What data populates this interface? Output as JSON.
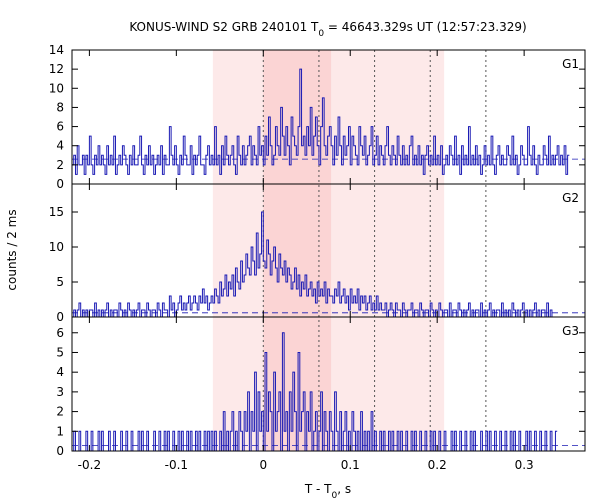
{
  "title_parts": {
    "prefix": "KONUS-WIND S2 GRB 240101 T",
    "sub": "0",
    "suffix": " = 46643.329s UT (12:57:23.329)"
  },
  "xlabel_parts": {
    "prefix": "T - T",
    "sub": "0",
    "suffix": ", s"
  },
  "ylabel": "counts / 2 ms",
  "colors": {
    "series": "#1a1ab4",
    "region_outer": "#fde9e9",
    "region_inner": "#fbd4d4",
    "axis": "#000000",
    "dash_line": "#555555"
  },
  "chart_data": {
    "type": "line",
    "step": true,
    "bin_width_s": 0.002,
    "xlim": [
      -0.22,
      0.37
    ],
    "x_ticks": [
      -0.2,
      -0.1,
      0,
      0.1,
      0.2,
      0.3
    ],
    "x_tick_labels": [
      "-0.2",
      "-0.1",
      "0",
      "0.1",
      "0.2",
      "0.3"
    ],
    "shaded_intervals": [
      {
        "level": "outer",
        "x": [
          -0.058,
          0.208
        ]
      },
      {
        "level": "inner",
        "x": [
          0.0,
          0.078
        ]
      }
    ],
    "vertical_dotted_lines_x": [
      0.0,
      0.064,
      0.128,
      0.192,
      0.256
    ],
    "panels": [
      {
        "label": "G1",
        "ylim": [
          0,
          14
        ],
        "y_ticks": [
          0,
          2,
          4,
          6,
          8,
          10,
          12,
          14
        ],
        "background_level": 2.6,
        "sparse": false,
        "peak_at": 0.03,
        "peak_value": 12,
        "peak_width": 0.05,
        "noise_amp": 1.8,
        "values": [
          2,
          3,
          1,
          4,
          2,
          2,
          3,
          1,
          3,
          2,
          5,
          2,
          1,
          3,
          2,
          4,
          2,
          3,
          2,
          1,
          4,
          2,
          3,
          2,
          5,
          1,
          2,
          3,
          2,
          4,
          3,
          2,
          1,
          3,
          2,
          4,
          2,
          2,
          3,
          5,
          2,
          1,
          3,
          2,
          4,
          2,
          3,
          1,
          2,
          3,
          2,
          4,
          1,
          3,
          2,
          2,
          6,
          3,
          2,
          4,
          2,
          1,
          3,
          2,
          5,
          3,
          2,
          2,
          4,
          1,
          3,
          2,
          3,
          5,
          2,
          2,
          1,
          3,
          4,
          2,
          3,
          2,
          6,
          2,
          3,
          1,
          4,
          2,
          5,
          3,
          2,
          3,
          4,
          2,
          1,
          5,
          3,
          2,
          4,
          2,
          3,
          4,
          5,
          2,
          4,
          3,
          2,
          6,
          3,
          4,
          2,
          5,
          3,
          7,
          4,
          2,
          3,
          6,
          4,
          3,
          8,
          5,
          3,
          6,
          4,
          2,
          7,
          5,
          4,
          3,
          6,
          12,
          4,
          5,
          3,
          6,
          4,
          8,
          3,
          5,
          7,
          4,
          2,
          6,
          9,
          4,
          3,
          5,
          6,
          4,
          2,
          5,
          3,
          7,
          4,
          2,
          5,
          3,
          4,
          6,
          2,
          5,
          4,
          3,
          2,
          6,
          4,
          3,
          5,
          2,
          3,
          4,
          6,
          2,
          3,
          5,
          2,
          4,
          3,
          2,
          4,
          6,
          3,
          2,
          4,
          3,
          2,
          5,
          3,
          2,
          4,
          2,
          3,
          2,
          4,
          5,
          2,
          3,
          2,
          4,
          2,
          3,
          1,
          3,
          4,
          2,
          3,
          2,
          5,
          2,
          3,
          2,
          4,
          1,
          2,
          3,
          2,
          4,
          3,
          2,
          5,
          2,
          3,
          1,
          4,
          2,
          3,
          2,
          6,
          2,
          3,
          2,
          4,
          2,
          3,
          1,
          2,
          4,
          2,
          3,
          2,
          5,
          2,
          1,
          3,
          4,
          2,
          3,
          2,
          2,
          4,
          3,
          2,
          5,
          2,
          3,
          1,
          2,
          4,
          3,
          2,
          2,
          6,
          3,
          2,
          4,
          2,
          1,
          3,
          2,
          2,
          4,
          3,
          2,
          5,
          2,
          3,
          2,
          3,
          4,
          2,
          3,
          2,
          4,
          1,
          3
        ]
      },
      {
        "label": "G2",
        "ylim": [
          0,
          19
        ],
        "y_ticks": [
          0,
          5,
          10,
          15
        ],
        "background_level": 0.6,
        "sparse": false,
        "peak_at": 0.02,
        "peak_value": 15.5,
        "peak_width": 0.03,
        "noise_amp": 1.2,
        "values": [
          0,
          1,
          0,
          1,
          2,
          0,
          1,
          0,
          1,
          0,
          1,
          1,
          0,
          2,
          0,
          1,
          0,
          1,
          0,
          1,
          2,
          0,
          1,
          0,
          1,
          1,
          0,
          2,
          1,
          0,
          1,
          0,
          2,
          1,
          0,
          1,
          0,
          1,
          2,
          0,
          1,
          1,
          0,
          2,
          1,
          0,
          1,
          1,
          0,
          2,
          1,
          0,
          2,
          1,
          1,
          0,
          3,
          1,
          2,
          0,
          1,
          2,
          3,
          1,
          2,
          1,
          2,
          3,
          1,
          2,
          3,
          2,
          1,
          3,
          2,
          4,
          2,
          3,
          1,
          2,
          3,
          2,
          4,
          3,
          2,
          5,
          3,
          4,
          6,
          3,
          5,
          4,
          6,
          3,
          7,
          5,
          4,
          8,
          5,
          6,
          9,
          7,
          6,
          10,
          8,
          6,
          12,
          7,
          9,
          15,
          8,
          7,
          11,
          9,
          6,
          8,
          10,
          7,
          5,
          9,
          7,
          6,
          8,
          5,
          7,
          6,
          4,
          5,
          7,
          4,
          6,
          3,
          5,
          4,
          6,
          3,
          4,
          5,
          3,
          4,
          2,
          5,
          3,
          4,
          3,
          5,
          2,
          4,
          3,
          3,
          2,
          4,
          3,
          5,
          2,
          3,
          4,
          2,
          3,
          1,
          4,
          2,
          3,
          2,
          4,
          1,
          3,
          2,
          3,
          1,
          2,
          3,
          1,
          2,
          1,
          3,
          1,
          2,
          1,
          1,
          2,
          0,
          1,
          2,
          1,
          0,
          2,
          1,
          1,
          0,
          2,
          1,
          0,
          1,
          1,
          2,
          0,
          1,
          1,
          0,
          2,
          1,
          0,
          1,
          1,
          0,
          2,
          1,
          0,
          1,
          0,
          2,
          1,
          0,
          1,
          1,
          0,
          2,
          0,
          1,
          1,
          0,
          2,
          1,
          0,
          1,
          0,
          1,
          2,
          0,
          1,
          0,
          1,
          1,
          0,
          2,
          0,
          1,
          0,
          1,
          2,
          0,
          1,
          0,
          1,
          1,
          0,
          2,
          0,
          1,
          0,
          1,
          0,
          2,
          1,
          0,
          1,
          0,
          1,
          2,
          0,
          1,
          0,
          1,
          0,
          1,
          2,
          0,
          1,
          0,
          1,
          1,
          0,
          2,
          0,
          1,
          0
        ]
      },
      {
        "label": "G3",
        "ylim": [
          0,
          6.8
        ],
        "y_ticks": [
          0,
          1,
          2,
          3,
          4,
          5,
          6
        ],
        "background_level": 0.28,
        "sparse": true,
        "peak_at": 0.02,
        "peak_value": 6,
        "peak_width": 0.04,
        "noise_amp": 0.5,
        "values": [
          0,
          1,
          0,
          0,
          1,
          0,
          0,
          0,
          1,
          0,
          0,
          1,
          0,
          0,
          0,
          1,
          0,
          1,
          0,
          0,
          0,
          1,
          0,
          0,
          1,
          0,
          0,
          0,
          1,
          0,
          0,
          1,
          0,
          0,
          1,
          0,
          0,
          0,
          1,
          0,
          1,
          0,
          0,
          1,
          0,
          0,
          0,
          1,
          0,
          0,
          1,
          0,
          0,
          1,
          0,
          1,
          0,
          0,
          1,
          0,
          0,
          1,
          0,
          1,
          0,
          0,
          1,
          0,
          1,
          0,
          0,
          1,
          0,
          1,
          0,
          0,
          1,
          0,
          1,
          0,
          1,
          0,
          1,
          0,
          0,
          1,
          0,
          2,
          0,
          1,
          0,
          1,
          2,
          0,
          1,
          0,
          2,
          1,
          0,
          2,
          1,
          3,
          0,
          2,
          1,
          4,
          0,
          3,
          1,
          2,
          0,
          5,
          1,
          3,
          2,
          0,
          4,
          1,
          2,
          3,
          0,
          6,
          1,
          2,
          0,
          3,
          1,
          4,
          2,
          0,
          5,
          1,
          2,
          3,
          0,
          2,
          1,
          3,
          0,
          1,
          2,
          0,
          1,
          3,
          0,
          2,
          1,
          0,
          2,
          1,
          0,
          3,
          1,
          0,
          2,
          0,
          1,
          2,
          0,
          1,
          0,
          2,
          1,
          0,
          1,
          0,
          2,
          0,
          1,
          0,
          1,
          0,
          2,
          0,
          1,
          0,
          0,
          1,
          0,
          1,
          0,
          0,
          1,
          0,
          1,
          0,
          0,
          1,
          0,
          1,
          0,
          0,
          1,
          0,
          0,
          1,
          0,
          1,
          0,
          0,
          1,
          0,
          0,
          1,
          0,
          0,
          1,
          0,
          1,
          0,
          0,
          1,
          0,
          0,
          1,
          0,
          0,
          0,
          1,
          0,
          1,
          0,
          0,
          1,
          0,
          0,
          1,
          0,
          0,
          1,
          0,
          1,
          0,
          0,
          0,
          1,
          0,
          0,
          1,
          0,
          1,
          0,
          0,
          1,
          0,
          0,
          1,
          0,
          0,
          1,
          0,
          0,
          1,
          0,
          1,
          0,
          0,
          1,
          0,
          0,
          0,
          1,
          0,
          1,
          0,
          0,
          1,
          0,
          0,
          1,
          0,
          0,
          1,
          0,
          0,
          1,
          0,
          0,
          1
        ]
      }
    ]
  }
}
